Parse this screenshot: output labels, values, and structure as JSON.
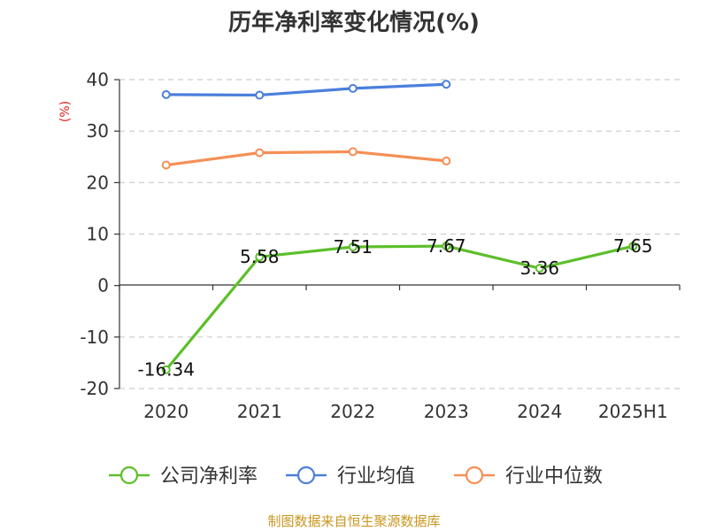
{
  "chart_data": {
    "type": "line",
    "title": "历年净利率变化情况(%)",
    "ylabel": "(%)",
    "categories": [
      "2020",
      "2021",
      "2022",
      "2023",
      "2024",
      "2025H1"
    ],
    "ylim": [
      -20,
      40
    ],
    "yticks": [
      -20,
      -10,
      0,
      10,
      20,
      30,
      40
    ],
    "grid": true,
    "legend_position": "bottom",
    "series": [
      {
        "name": "公司净利率",
        "color": "#5cbf2a",
        "values": [
          -16.34,
          5.58,
          7.51,
          7.67,
          3.36,
          7.65
        ],
        "labels": [
          "-16.34",
          "5.58",
          "7.51",
          "7.67",
          "3.36",
          "7.65"
        ]
      },
      {
        "name": "行业均值",
        "color": "#4a7fdc",
        "values": [
          37.1,
          37.0,
          38.3,
          39.1,
          null,
          null
        ]
      },
      {
        "name": "行业中位数",
        "color": "#f58f55",
        "values": [
          23.4,
          25.8,
          26.0,
          24.2,
          null,
          null
        ]
      }
    ],
    "source": "制图数据来自恒生聚源数据库"
  }
}
